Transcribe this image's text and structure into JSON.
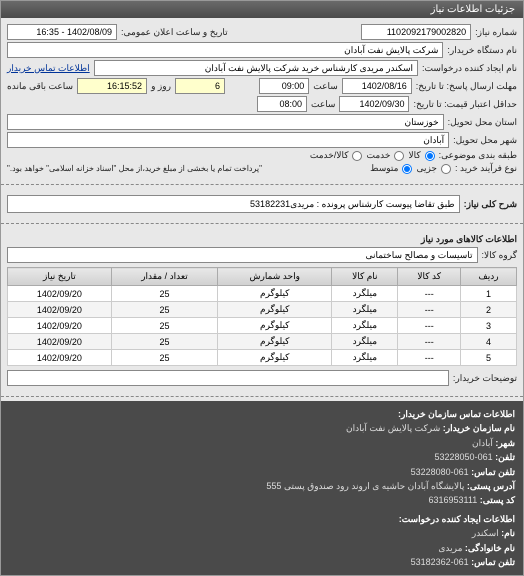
{
  "header": {
    "title": "جزئیات اطلاعات نیاز"
  },
  "info": {
    "req_no_label": "شماره نیاز:",
    "req_no": "1102092179002820",
    "announce_label": "تاریخ و ساعت اعلان عمومی:",
    "announce": "1402/08/09 - 16:35",
    "buyer_label": "نام دستگاه خریدار:",
    "buyer": "شرکت پالایش نفت آبادان",
    "requester_label": "نام ایجاد کننده درخواست:",
    "requester": "اسکندر مریدی کارشناس خرید شرکت پالایش نفت آبادان",
    "contact_link": "اطلاعات تماس خریدار",
    "deadline_recv_label": "مهلت ارسال پاسخ: تا تاریخ:",
    "deadline_date": "1402/08/16",
    "deadline_time_label": "ساعت",
    "deadline_time": "09:00",
    "days_label": "روز و",
    "days": "6",
    "remain_label": "ساعت باقی مانده",
    "remain": "16:15:52",
    "validity_label": "حداقل اعتبار قیمت: تا تاریخ:",
    "validity_date": "1402/09/30",
    "validity_time_label": "ساعت",
    "validity_time": "08:00",
    "province_label": "استان محل تحویل:",
    "province": "خوزستان",
    "city_label": "شهر محل تحویل:",
    "city": "آبادان",
    "topic_class_label": "طبقه بندی موضوعی:",
    "opt_goods": "کالا",
    "opt_service": "خدمت",
    "opt_goods_service": "کالا/خدمت",
    "process_label": "نوع فرآیند خرید :",
    "opt_partial": "جزیی",
    "opt_medium": "متوسط",
    "process_note": "\"پرداخت تمام یا بخشی از مبلغ خرید،از محل \"اسناد خزانه اسلامی\" خواهد بود.\""
  },
  "desc": {
    "label": "شرح کلی نیاز:",
    "text": "طبق تقاضا پیوست کارشناس پرونده : مریدی53182231"
  },
  "goods": {
    "header": "اطلاعات کالاهای مورد نیاز",
    "group_label": "گروه کالا:",
    "group": "تاسیسات و مصالح ساختمانی",
    "columns": [
      "ردیف",
      "کد کالا",
      "نام کالا",
      "واحد شمارش",
      "تعداد / مقدار",
      "تاریخ نیاز"
    ],
    "rows": [
      [
        "1",
        "---",
        "میلگرد",
        "کیلوگرم",
        "25",
        "1402/09/20"
      ],
      [
        "2",
        "---",
        "میلگرد",
        "کیلوگرم",
        "25",
        "1402/09/20"
      ],
      [
        "3",
        "---",
        "میلگرد",
        "کیلوگرم",
        "25",
        "1402/09/20"
      ],
      [
        "4",
        "---",
        "میلگرد",
        "کیلوگرم",
        "25",
        "1402/09/20"
      ],
      [
        "5",
        "---",
        "میلگرد",
        "کیلوگرم",
        "25",
        "1402/09/20"
      ]
    ],
    "buyer_desc_label": "توضیحات خریدار:",
    "buyer_desc": ""
  },
  "contact": {
    "header": "اطلاعات تماس سازمان خریدار:",
    "org_label": "نام سازمان خریدار:",
    "org": "شرکت پالایش نفت آبادان",
    "city_label": "شهر:",
    "city": "آبادان",
    "tel_label": "تلفن:",
    "tel": "061-53228050",
    "fax_label": "تلفن تماس:",
    "fax": "061-53228080",
    "addr_label": "آدرس پستی:",
    "addr": "پالایشگاه آبادان حاشیه ی اروند رود صندوق پستی 555",
    "postal_label": "کد پستی:",
    "postal": "6316953111",
    "req_header": "اطلاعات ایجاد کننده درخواست:",
    "name_label": "نام:",
    "name": "اسکندر",
    "lname_label": "نام خانوادگی:",
    "lname": "مریدی",
    "phone_label": "تلفن تماس:",
    "phone": "061-53182362"
  },
  "colors": {
    "header_bg": "#4a4a4a",
    "panel_bg": "#e8e8e8",
    "field_bg": "#ffffff",
    "yellow": "#ffffcc",
    "border": "#888888"
  }
}
